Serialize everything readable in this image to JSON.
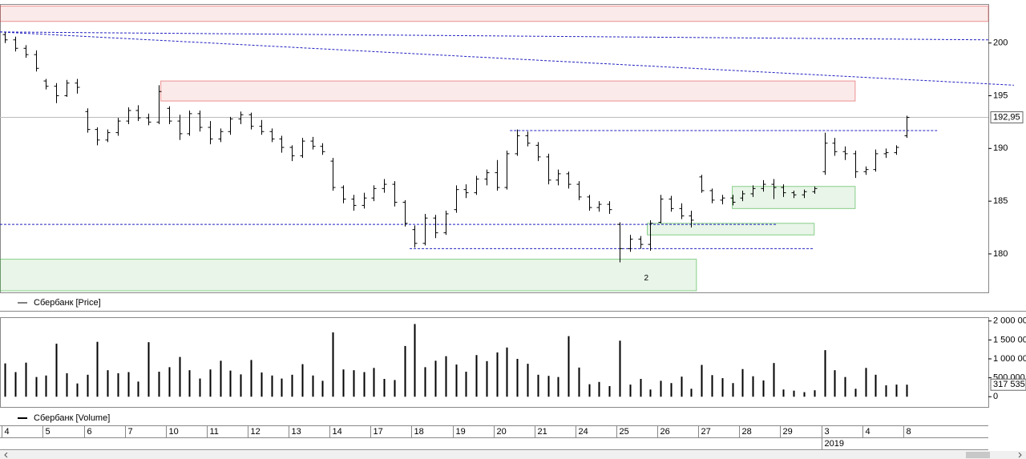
{
  "chart_data": [
    {
      "type": "ohlc",
      "name": "Сбербанк [Price]",
      "color": "#000000",
      "xlim": [
        -0.5,
        96
      ],
      "ylim": [
        176.35,
        203.7
      ],
      "yticks": [
        180,
        185,
        190,
        195,
        200
      ],
      "open": [
        200.8,
        200.3,
        199.5,
        198.9,
        196.4,
        195.9,
        195.0,
        196.2,
        193.5,
        191.8,
        190.8,
        191.5,
        192.6,
        193.6,
        192.9,
        192.5,
        193.8,
        192.6,
        191.4,
        193.3,
        192.0,
        190.9,
        191.6,
        192.8,
        193.2,
        192.1,
        191.6,
        190.9,
        190.1,
        189.3,
        190.7,
        190.2,
        188.8,
        186.3,
        185.2,
        184.6,
        185.3,
        186.2,
        186.6,
        184.9,
        182.3,
        181.0,
        183.4,
        182.0,
        184.2,
        186.1,
        185.8,
        187.1,
        187.7,
        186.3,
        189.5,
        191.2,
        190.3,
        189.2,
        187.0,
        187.6,
        186.6,
        185.4,
        184.4,
        184.7,
        182.8,
        180.5,
        181.4,
        180.9,
        183.0,
        185.2,
        184.3,
        183.6,
        187.3,
        186.0,
        185.1,
        185.3,
        185.3,
        185.7,
        186.2,
        186.6,
        186.3,
        185.8,
        185.6,
        185.9,
        187.8,
        190.5,
        189.7,
        189.5,
        187.8,
        188.0,
        189.5,
        189.6,
        191.2
      ],
      "high": [
        201.0,
        200.6,
        199.8,
        199.3,
        196.6,
        196.2,
        196.5,
        196.6,
        193.8,
        192.0,
        191.8,
        192.9,
        193.9,
        194.1,
        193.3,
        196.0,
        194.0,
        193.2,
        193.6,
        193.6,
        192.6,
        191.9,
        193.0,
        193.5,
        193.4,
        192.7,
        191.9,
        191.2,
        190.3,
        191.0,
        191.1,
        190.5,
        189.1,
        186.5,
        185.6,
        185.8,
        186.5,
        187.1,
        186.9,
        185.1,
        182.7,
        183.8,
        183.7,
        184.1,
        186.5,
        186.6,
        187.4,
        188.0,
        188.9,
        189.8,
        191.8,
        191.6,
        190.6,
        189.5,
        188.0,
        187.8,
        186.9,
        185.6,
        185.0,
        185.0,
        183.0,
        181.8,
        181.7,
        183.2,
        185.6,
        185.5,
        184.8,
        184.1,
        187.5,
        186.2,
        185.6,
        185.6,
        186.0,
        186.5,
        187.0,
        187.1,
        186.6,
        186.0,
        186.1,
        186.4,
        191.5,
        191.0,
        190.2,
        189.8,
        188.3,
        189.9,
        190.0,
        190.3,
        193.1
      ],
      "low": [
        200.0,
        199.2,
        198.6,
        197.3,
        195.6,
        194.3,
        194.9,
        195.2,
        191.5,
        190.3,
        190.6,
        191.2,
        192.3,
        192.6,
        192.2,
        192.3,
        192.3,
        190.8,
        191.2,
        191.6,
        190.4,
        190.6,
        191.3,
        192.3,
        191.8,
        191.3,
        190.6,
        189.6,
        188.8,
        189.1,
        189.9,
        189.4,
        186.0,
        184.8,
        184.1,
        184.3,
        185.0,
        185.8,
        184.5,
        182.6,
        180.6,
        180.8,
        181.5,
        181.8,
        183.9,
        185.3,
        185.6,
        186.5,
        186.0,
        186.1,
        189.3,
        190.2,
        188.8,
        186.6,
        186.5,
        186.2,
        185.1,
        184.1,
        184.0,
        183.8,
        179.2,
        180.2,
        180.5,
        180.3,
        182.9,
        184.0,
        183.3,
        182.5,
        185.8,
        184.8,
        184.7,
        184.6,
        185.0,
        185.4,
        185.9,
        185.2,
        185.4,
        185.3,
        185.3,
        185.7,
        187.5,
        189.3,
        188.9,
        187.2,
        187.5,
        187.8,
        189.1,
        189.4,
        191.0
      ],
      "close": [
        200.3,
        199.5,
        198.9,
        197.6,
        195.9,
        195.0,
        196.2,
        195.8,
        191.8,
        190.8,
        191.5,
        192.6,
        193.6,
        192.9,
        192.5,
        195.4,
        192.6,
        191.4,
        193.3,
        192.0,
        190.9,
        191.6,
        192.8,
        193.2,
        192.1,
        191.6,
        190.9,
        190.1,
        189.3,
        190.7,
        190.2,
        189.7,
        186.3,
        185.2,
        184.6,
        185.3,
        186.2,
        186.6,
        184.9,
        182.9,
        181.0,
        183.4,
        182.0,
        183.8,
        186.1,
        185.8,
        187.1,
        187.7,
        186.3,
        189.5,
        191.2,
        190.5,
        189.2,
        187.0,
        187.6,
        186.6,
        185.4,
        184.4,
        184.7,
        184.2,
        180.5,
        181.4,
        180.9,
        182.9,
        185.2,
        184.3,
        183.6,
        183.2,
        186.0,
        185.1,
        185.3,
        184.9,
        185.7,
        186.2,
        186.6,
        186.3,
        185.8,
        185.6,
        185.9,
        186.2,
        190.5,
        189.7,
        189.5,
        187.8,
        188.0,
        189.5,
        189.6,
        190.1,
        192.95
      ],
      "last_value": {
        "value": 192.95,
        "label": "192,95"
      },
      "zones": [
        {
          "x": [
            -0.5,
            96
          ],
          "y": [
            202.05,
            203.5
          ],
          "color": "#e05050"
        },
        {
          "x": [
            15.2,
            83
          ],
          "y": [
            194.5,
            196.4
          ],
          "color": "#e05050"
        },
        {
          "x": [
            -0.5,
            67.5
          ],
          "y": [
            176.5,
            179.5
          ],
          "color": "#40b040"
        },
        {
          "x": [
            62.7,
            79
          ],
          "y": [
            181.8,
            182.9
          ],
          "color": "#40b040"
        },
        {
          "x": [
            71,
            83
          ],
          "y": [
            184.3,
            186.4
          ],
          "color": "#40b040"
        }
      ],
      "line_color": "#2020c0",
      "lines": [
        {
          "x": [
            -0.5,
            96
          ],
          "y": [
            201.05,
            200.3
          ]
        },
        {
          "x": [
            -0.5,
            98.5
          ],
          "y": [
            201.05,
            196.0
          ]
        },
        {
          "x": [
            49.3,
            91
          ],
          "y": [
            191.7,
            191.7
          ]
        },
        {
          "x": [
            -0.5,
            75.3
          ],
          "y": [
            182.8,
            182.8
          ]
        },
        {
          "x": [
            39.5,
            79
          ],
          "y": [
            180.5,
            180.5
          ]
        }
      ],
      "annotations": [
        {
          "text": "2",
          "x": 62.6,
          "y": 177.7
        }
      ]
    },
    {
      "type": "bar",
      "name": "Сбербанк [Volume]",
      "color": "#000000",
      "xlim": [
        -0.5,
        96
      ],
      "ylim": [
        -270000,
        2100000
      ],
      "yticks": [
        {
          "value": 0,
          "label": "0"
        },
        {
          "value": 500000,
          "label": "500 000"
        },
        {
          "value": 1000000,
          "label": "1 000 000"
        },
        {
          "value": 1500000,
          "label": "1 500 000"
        },
        {
          "value": 2000000,
          "label": "2 000 000"
        }
      ],
      "values": [
        880000,
        650000,
        900000,
        520000,
        560000,
        1400000,
        620000,
        350000,
        580000,
        1450000,
        700000,
        620000,
        650000,
        400000,
        1440000,
        660000,
        780000,
        1050000,
        700000,
        480000,
        720000,
        950000,
        690000,
        590000,
        970000,
        640000,
        560000,
        480000,
        580000,
        860000,
        560000,
        420000,
        1700000,
        720000,
        700000,
        650000,
        760000,
        470000,
        440000,
        1340000,
        1920000,
        780000,
        950000,
        1070000,
        850000,
        660000,
        1100000,
        940000,
        1170000,
        1300000,
        1000000,
        870000,
        580000,
        550000,
        520000,
        1600000,
        770000,
        330000,
        390000,
        280000,
        1480000,
        320000,
        470000,
        190000,
        420000,
        360000,
        530000,
        210000,
        840000,
        570000,
        490000,
        360000,
        730000,
        540000,
        430000,
        890000,
        190000,
        160000,
        120000,
        170000,
        1230000,
        700000,
        520000,
        210000,
        760000,
        580000,
        300000,
        320000,
        317535
      ],
      "last_value": {
        "value": 317535,
        "label": "317 535"
      },
      "xticks": [
        {
          "value": 0,
          "label": "4"
        },
        {
          "value": 4,
          "label": "5"
        },
        {
          "value": 8,
          "label": "6"
        },
        {
          "value": 12,
          "label": "7"
        },
        {
          "value": 16,
          "label": "10"
        },
        {
          "value": 20,
          "label": "11"
        },
        {
          "value": 24,
          "label": "12"
        },
        {
          "value": 28,
          "label": "13"
        },
        {
          "value": 32,
          "label": "14"
        },
        {
          "value": 36,
          "label": "17"
        },
        {
          "value": 40,
          "label": "18"
        },
        {
          "value": 44,
          "label": "19"
        },
        {
          "value": 48,
          "label": "20"
        },
        {
          "value": 52,
          "label": "21"
        },
        {
          "value": 56,
          "label": "24"
        },
        {
          "value": 60,
          "label": "25"
        },
        {
          "value": 64,
          "label": "26"
        },
        {
          "value": 68,
          "label": "27"
        },
        {
          "value": 72,
          "label": "28"
        },
        {
          "value": 76,
          "label": "29"
        },
        {
          "value": 80,
          "label": "3"
        },
        {
          "value": 84,
          "label": "4"
        },
        {
          "value": 88,
          "label": "8"
        }
      ],
      "xticks2": [
        {
          "value": 80,
          "label": "2019"
        }
      ]
    }
  ]
}
